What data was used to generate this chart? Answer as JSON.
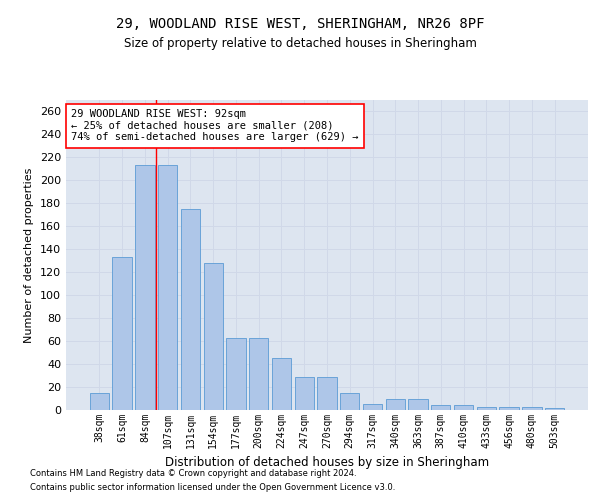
{
  "title1": "29, WOODLAND RISE WEST, SHERINGHAM, NR26 8PF",
  "title2": "Size of property relative to detached houses in Sheringham",
  "xlabel": "Distribution of detached houses by size in Sheringham",
  "ylabel": "Number of detached properties",
  "categories": [
    "38sqm",
    "61sqm",
    "84sqm",
    "107sqm",
    "131sqm",
    "154sqm",
    "177sqm",
    "200sqm",
    "224sqm",
    "247sqm",
    "270sqm",
    "294sqm",
    "317sqm",
    "340sqm",
    "363sqm",
    "387sqm",
    "410sqm",
    "433sqm",
    "456sqm",
    "480sqm",
    "503sqm"
  ],
  "values": [
    15,
    133,
    213,
    213,
    175,
    128,
    63,
    63,
    45,
    29,
    29,
    15,
    5,
    10,
    10,
    4,
    4,
    3,
    3,
    3,
    2
  ],
  "bar_color": "#aec6e8",
  "bar_edge_color": "#5b9bd5",
  "grid_color": "#d0d8e8",
  "background_color": "#dde5f0",
  "vline_x_index": 2,
  "vline_color": "red",
  "annotation_text": "29 WOODLAND RISE WEST: 92sqm\n← 25% of detached houses are smaller (208)\n74% of semi-detached houses are larger (629) →",
  "annotation_box_color": "white",
  "annotation_box_edge": "red",
  "ylim": [
    0,
    270
  ],
  "yticks": [
    0,
    20,
    40,
    60,
    80,
    100,
    120,
    140,
    160,
    180,
    200,
    220,
    240,
    260
  ],
  "footnote1": "Contains HM Land Registry data © Crown copyright and database right 2024.",
  "footnote2": "Contains public sector information licensed under the Open Government Licence v3.0."
}
